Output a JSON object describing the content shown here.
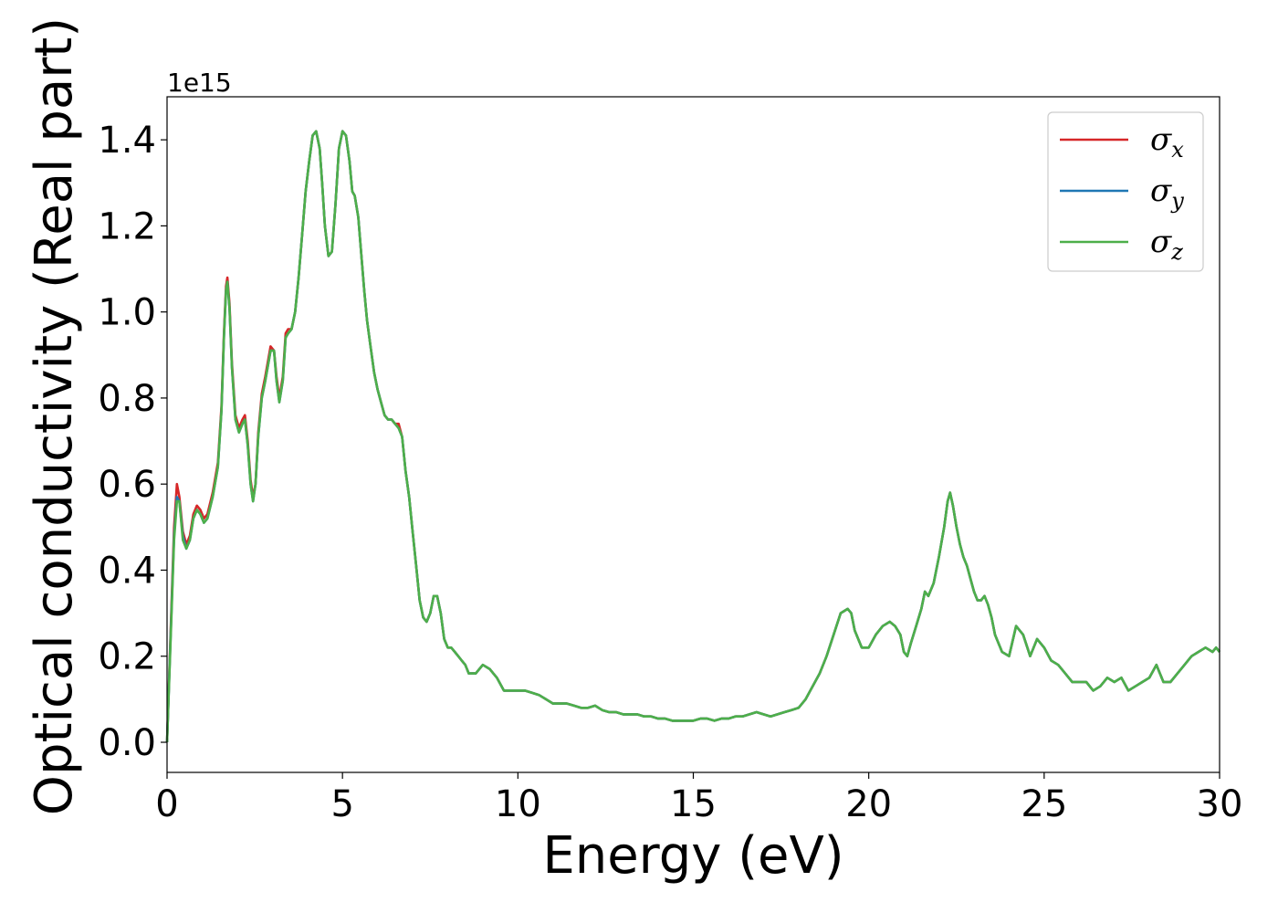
{
  "chart_data": {
    "type": "line",
    "title": "",
    "xlabel": "Energy (eV)",
    "ylabel": "Optical conductivity (Real part)",
    "y_offset_label": "1e15",
    "xlim": [
      0,
      30
    ],
    "ylim": [
      -0.07,
      1.5
    ],
    "x_ticks": [
      0,
      5,
      10,
      15,
      20,
      25,
      30
    ],
    "x_tick_labels": [
      "0",
      "5",
      "10",
      "15",
      "20",
      "25",
      "30"
    ],
    "y_ticks": [
      0.0,
      0.2,
      0.4,
      0.6,
      0.8,
      1.0,
      1.2,
      1.4
    ],
    "y_tick_labels": [
      "0.0",
      "0.2",
      "0.4",
      "0.6",
      "0.8",
      "1.0",
      "1.2",
      "1.4"
    ],
    "grid": false,
    "legend_position": "top-right",
    "x": [
      0.0,
      0.1,
      0.2,
      0.28,
      0.35,
      0.45,
      0.55,
      0.65,
      0.75,
      0.85,
      0.95,
      1.05,
      1.15,
      1.3,
      1.45,
      1.55,
      1.62,
      1.68,
      1.72,
      1.78,
      1.85,
      1.95,
      2.05,
      2.15,
      2.22,
      2.3,
      2.38,
      2.45,
      2.52,
      2.6,
      2.7,
      2.8,
      2.95,
      3.05,
      3.12,
      3.2,
      3.3,
      3.38,
      3.45,
      3.55,
      3.65,
      3.75,
      3.85,
      3.95,
      4.05,
      4.15,
      4.25,
      4.35,
      4.42,
      4.5,
      4.6,
      4.7,
      4.8,
      4.9,
      5.0,
      5.1,
      5.2,
      5.28,
      5.35,
      5.45,
      5.55,
      5.62,
      5.7,
      5.8,
      5.9,
      6.0,
      6.1,
      6.2,
      6.3,
      6.4,
      6.5,
      6.6,
      6.7,
      6.8,
      6.9,
      7.0,
      7.1,
      7.2,
      7.3,
      7.4,
      7.5,
      7.6,
      7.7,
      7.8,
      7.9,
      8.0,
      8.1,
      8.2,
      8.3,
      8.4,
      8.5,
      8.6,
      8.8,
      9.0,
      9.2,
      9.4,
      9.6,
      9.8,
      10.0,
      10.2,
      10.4,
      10.6,
      10.8,
      11.0,
      11.2,
      11.4,
      11.6,
      11.8,
      12.0,
      12.2,
      12.4,
      12.6,
      12.8,
      13.0,
      13.2,
      13.4,
      13.6,
      13.8,
      14.0,
      14.2,
      14.4,
      14.6,
      14.8,
      15.0,
      15.2,
      15.4,
      15.6,
      15.8,
      16.0,
      16.2,
      16.4,
      16.6,
      16.8,
      17.0,
      17.2,
      17.4,
      17.6,
      17.8,
      18.0,
      18.2,
      18.4,
      18.6,
      18.8,
      19.0,
      19.2,
      19.4,
      19.5,
      19.6,
      19.8,
      20.0,
      20.2,
      20.4,
      20.6,
      20.75,
      20.9,
      21.0,
      21.1,
      21.2,
      21.35,
      21.5,
      21.6,
      21.7,
      21.85,
      22.0,
      22.15,
      22.25,
      22.32,
      22.4,
      22.5,
      22.6,
      22.7,
      22.8,
      22.9,
      23.0,
      23.1,
      23.2,
      23.3,
      23.4,
      23.5,
      23.6,
      23.8,
      24.0,
      24.2,
      24.4,
      24.6,
      24.8,
      25.0,
      25.2,
      25.4,
      25.6,
      25.8,
      26.0,
      26.2,
      26.4,
      26.6,
      26.8,
      27.0,
      27.2,
      27.4,
      27.6,
      27.8,
      28.0,
      28.2,
      28.4,
      28.6,
      28.8,
      29.0,
      29.2,
      29.4,
      29.6,
      29.8,
      29.9,
      30.0
    ],
    "series": [
      {
        "name": "σx",
        "color": "#d62728",
        "values": [
          0.0,
          0.25,
          0.5,
          0.6,
          0.57,
          0.49,
          0.46,
          0.48,
          0.53,
          0.55,
          0.54,
          0.52,
          0.53,
          0.58,
          0.65,
          0.78,
          0.95,
          1.06,
          1.08,
          1.02,
          0.88,
          0.76,
          0.73,
          0.75,
          0.76,
          0.7,
          0.61,
          0.57,
          0.6,
          0.72,
          0.81,
          0.85,
          0.92,
          0.91,
          0.85,
          0.8,
          0.85,
          0.95,
          0.96,
          0.96,
          1.0,
          1.08,
          1.18,
          1.28,
          1.35,
          1.41,
          1.42,
          1.38,
          1.3,
          1.2,
          1.13,
          1.14,
          1.25,
          1.38,
          1.42,
          1.41,
          1.35,
          1.28,
          1.27,
          1.22,
          1.12,
          1.05,
          0.98,
          0.92,
          0.86,
          0.82,
          0.79,
          0.76,
          0.75,
          0.75,
          0.74,
          0.74,
          0.71,
          0.63,
          0.57,
          0.49,
          0.41,
          0.33,
          0.29,
          0.28,
          0.3,
          0.34,
          0.34,
          0.3,
          0.24,
          0.22,
          0.22,
          0.21,
          0.2,
          0.19,
          0.18,
          0.16,
          0.16,
          0.18,
          0.17,
          0.15,
          0.12,
          0.12,
          0.12,
          0.12,
          0.115,
          0.11,
          0.1,
          0.09,
          0.09,
          0.09,
          0.085,
          0.08,
          0.08,
          0.085,
          0.075,
          0.07,
          0.07,
          0.065,
          0.065,
          0.065,
          0.06,
          0.06,
          0.055,
          0.055,
          0.05,
          0.05,
          0.05,
          0.05,
          0.055,
          0.055,
          0.05,
          0.055,
          0.055,
          0.06,
          0.06,
          0.065,
          0.07,
          0.065,
          0.06,
          0.065,
          0.07,
          0.075,
          0.08,
          0.1,
          0.13,
          0.16,
          0.2,
          0.25,
          0.3,
          0.31,
          0.3,
          0.26,
          0.22,
          0.22,
          0.25,
          0.27,
          0.28,
          0.27,
          0.25,
          0.21,
          0.2,
          0.23,
          0.27,
          0.31,
          0.35,
          0.34,
          0.37,
          0.43,
          0.5,
          0.56,
          0.58,
          0.55,
          0.5,
          0.46,
          0.43,
          0.41,
          0.38,
          0.35,
          0.33,
          0.33,
          0.34,
          0.32,
          0.29,
          0.25,
          0.21,
          0.2,
          0.27,
          0.25,
          0.2,
          0.24,
          0.22,
          0.19,
          0.18,
          0.16,
          0.14,
          0.14,
          0.14,
          0.12,
          0.13,
          0.15,
          0.14,
          0.15,
          0.12,
          0.13,
          0.14,
          0.15,
          0.18,
          0.14,
          0.14,
          0.16,
          0.18,
          0.2,
          0.21,
          0.22,
          0.21,
          0.22,
          0.21
        ]
      },
      {
        "name": "σy",
        "color": "#1f77b4",
        "values": [
          0.0,
          0.24,
          0.48,
          0.57,
          0.56,
          0.48,
          0.45,
          0.47,
          0.52,
          0.54,
          0.53,
          0.51,
          0.52,
          0.57,
          0.64,
          0.77,
          0.94,
          1.05,
          1.07,
          1.01,
          0.87,
          0.75,
          0.72,
          0.74,
          0.75,
          0.69,
          0.6,
          0.56,
          0.6,
          0.71,
          0.8,
          0.84,
          0.91,
          0.91,
          0.84,
          0.79,
          0.84,
          0.94,
          0.95,
          0.96,
          1.0,
          1.08,
          1.18,
          1.28,
          1.35,
          1.41,
          1.42,
          1.38,
          1.3,
          1.2,
          1.13,
          1.14,
          1.25,
          1.38,
          1.42,
          1.41,
          1.35,
          1.28,
          1.27,
          1.22,
          1.12,
          1.05,
          0.98,
          0.92,
          0.86,
          0.82,
          0.79,
          0.76,
          0.75,
          0.75,
          0.74,
          0.73,
          0.71,
          0.63,
          0.57,
          0.49,
          0.41,
          0.33,
          0.29,
          0.28,
          0.3,
          0.34,
          0.34,
          0.3,
          0.24,
          0.22,
          0.22,
          0.21,
          0.2,
          0.19,
          0.18,
          0.16,
          0.16,
          0.18,
          0.17,
          0.15,
          0.12,
          0.12,
          0.12,
          0.12,
          0.115,
          0.11,
          0.1,
          0.09,
          0.09,
          0.09,
          0.085,
          0.08,
          0.08,
          0.085,
          0.075,
          0.07,
          0.07,
          0.065,
          0.065,
          0.065,
          0.06,
          0.06,
          0.055,
          0.055,
          0.05,
          0.05,
          0.05,
          0.05,
          0.055,
          0.055,
          0.05,
          0.055,
          0.055,
          0.06,
          0.06,
          0.065,
          0.07,
          0.065,
          0.06,
          0.065,
          0.07,
          0.075,
          0.08,
          0.1,
          0.13,
          0.16,
          0.2,
          0.25,
          0.3,
          0.31,
          0.3,
          0.26,
          0.22,
          0.22,
          0.25,
          0.27,
          0.28,
          0.27,
          0.25,
          0.21,
          0.2,
          0.23,
          0.27,
          0.31,
          0.35,
          0.34,
          0.37,
          0.43,
          0.5,
          0.56,
          0.58,
          0.55,
          0.5,
          0.46,
          0.43,
          0.41,
          0.38,
          0.35,
          0.33,
          0.33,
          0.34,
          0.32,
          0.29,
          0.25,
          0.21,
          0.2,
          0.27,
          0.25,
          0.2,
          0.24,
          0.22,
          0.19,
          0.18,
          0.16,
          0.14,
          0.14,
          0.14,
          0.12,
          0.13,
          0.15,
          0.14,
          0.15,
          0.12,
          0.13,
          0.14,
          0.15,
          0.18,
          0.14,
          0.14,
          0.16,
          0.18,
          0.2,
          0.21,
          0.22,
          0.21,
          0.22,
          0.21
        ]
      },
      {
        "name": "σz",
        "color": "#4daf4a",
        "values": [
          0.0,
          0.23,
          0.47,
          0.56,
          0.56,
          0.47,
          0.45,
          0.47,
          0.52,
          0.54,
          0.53,
          0.51,
          0.52,
          0.57,
          0.64,
          0.77,
          0.94,
          1.05,
          1.07,
          1.01,
          0.87,
          0.75,
          0.72,
          0.74,
          0.75,
          0.69,
          0.6,
          0.56,
          0.6,
          0.71,
          0.8,
          0.84,
          0.91,
          0.91,
          0.84,
          0.79,
          0.84,
          0.94,
          0.95,
          0.96,
          1.0,
          1.08,
          1.18,
          1.28,
          1.35,
          1.41,
          1.42,
          1.38,
          1.3,
          1.2,
          1.13,
          1.14,
          1.25,
          1.38,
          1.42,
          1.41,
          1.35,
          1.28,
          1.27,
          1.22,
          1.12,
          1.05,
          0.98,
          0.92,
          0.86,
          0.82,
          0.79,
          0.76,
          0.75,
          0.75,
          0.74,
          0.73,
          0.71,
          0.63,
          0.57,
          0.49,
          0.41,
          0.33,
          0.29,
          0.28,
          0.3,
          0.34,
          0.34,
          0.3,
          0.24,
          0.22,
          0.22,
          0.21,
          0.2,
          0.19,
          0.18,
          0.16,
          0.16,
          0.18,
          0.17,
          0.15,
          0.12,
          0.12,
          0.12,
          0.12,
          0.115,
          0.11,
          0.1,
          0.09,
          0.09,
          0.09,
          0.085,
          0.08,
          0.08,
          0.085,
          0.075,
          0.07,
          0.07,
          0.065,
          0.065,
          0.065,
          0.06,
          0.06,
          0.055,
          0.055,
          0.05,
          0.05,
          0.05,
          0.05,
          0.055,
          0.055,
          0.05,
          0.055,
          0.055,
          0.06,
          0.06,
          0.065,
          0.07,
          0.065,
          0.06,
          0.065,
          0.07,
          0.075,
          0.08,
          0.1,
          0.13,
          0.16,
          0.2,
          0.25,
          0.3,
          0.31,
          0.3,
          0.26,
          0.22,
          0.22,
          0.25,
          0.27,
          0.28,
          0.27,
          0.25,
          0.21,
          0.2,
          0.23,
          0.27,
          0.31,
          0.35,
          0.34,
          0.37,
          0.43,
          0.5,
          0.56,
          0.58,
          0.55,
          0.5,
          0.46,
          0.43,
          0.41,
          0.38,
          0.35,
          0.33,
          0.33,
          0.34,
          0.32,
          0.29,
          0.25,
          0.21,
          0.2,
          0.27,
          0.25,
          0.2,
          0.24,
          0.22,
          0.19,
          0.18,
          0.16,
          0.14,
          0.14,
          0.14,
          0.12,
          0.13,
          0.15,
          0.14,
          0.15,
          0.12,
          0.13,
          0.14,
          0.15,
          0.18,
          0.14,
          0.14,
          0.16,
          0.18,
          0.2,
          0.21,
          0.22,
          0.21,
          0.22,
          0.21
        ]
      }
    ]
  }
}
